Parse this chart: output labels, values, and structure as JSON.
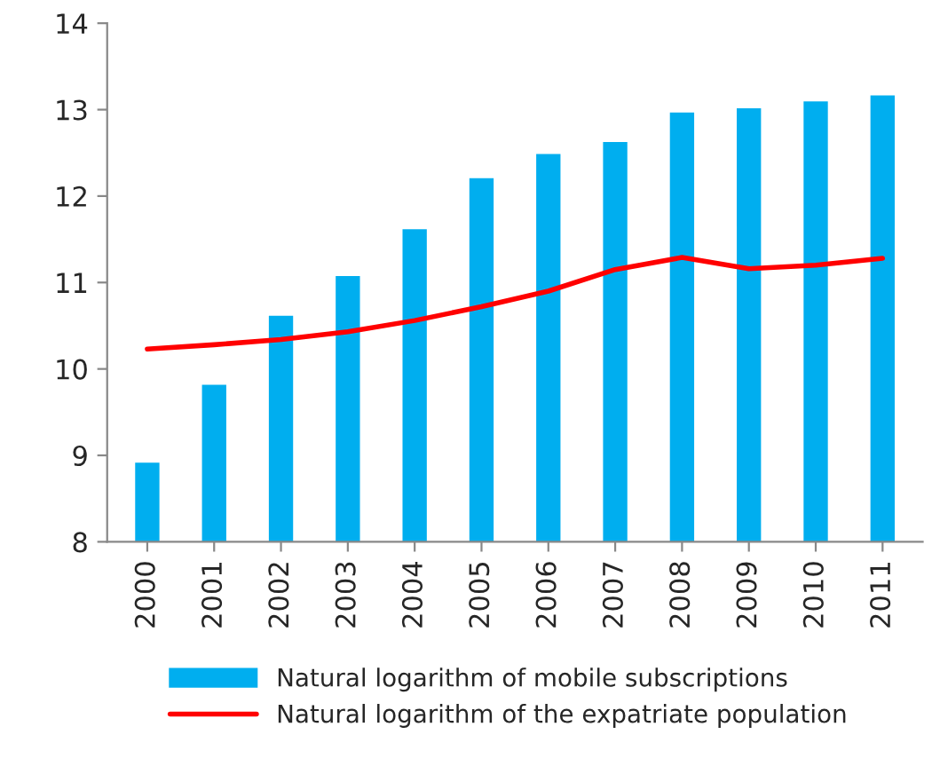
{
  "chart_data": {
    "type": "bar",
    "categories": [
      "2000",
      "2001",
      "2002",
      "2003",
      "2004",
      "2005",
      "2006",
      "2007",
      "2008",
      "2009",
      "2010",
      "2011"
    ],
    "series": [
      {
        "name": "Natural logarithm of mobile subscriptions",
        "color": "#00aeef",
        "values": [
          8.93,
          9.83,
          10.63,
          11.09,
          11.63,
          12.22,
          12.5,
          12.64,
          12.98,
          13.03,
          13.11,
          13.18
        ]
      },
      {
        "name": "Natural logarithm of the expatriate population",
        "type": "line",
        "color": "#ff0000",
        "values": [
          10.23,
          10.28,
          10.34,
          10.43,
          10.56,
          10.72,
          10.9,
          11.15,
          11.29,
          11.16,
          11.2,
          11.28
        ]
      }
    ],
    "ylim": [
      8,
      14
    ],
    "yticks": [
      8,
      9,
      10,
      11,
      12,
      13,
      14
    ],
    "grid": false,
    "legend": "bottom",
    "marker": "none",
    "line_style": "solid"
  }
}
